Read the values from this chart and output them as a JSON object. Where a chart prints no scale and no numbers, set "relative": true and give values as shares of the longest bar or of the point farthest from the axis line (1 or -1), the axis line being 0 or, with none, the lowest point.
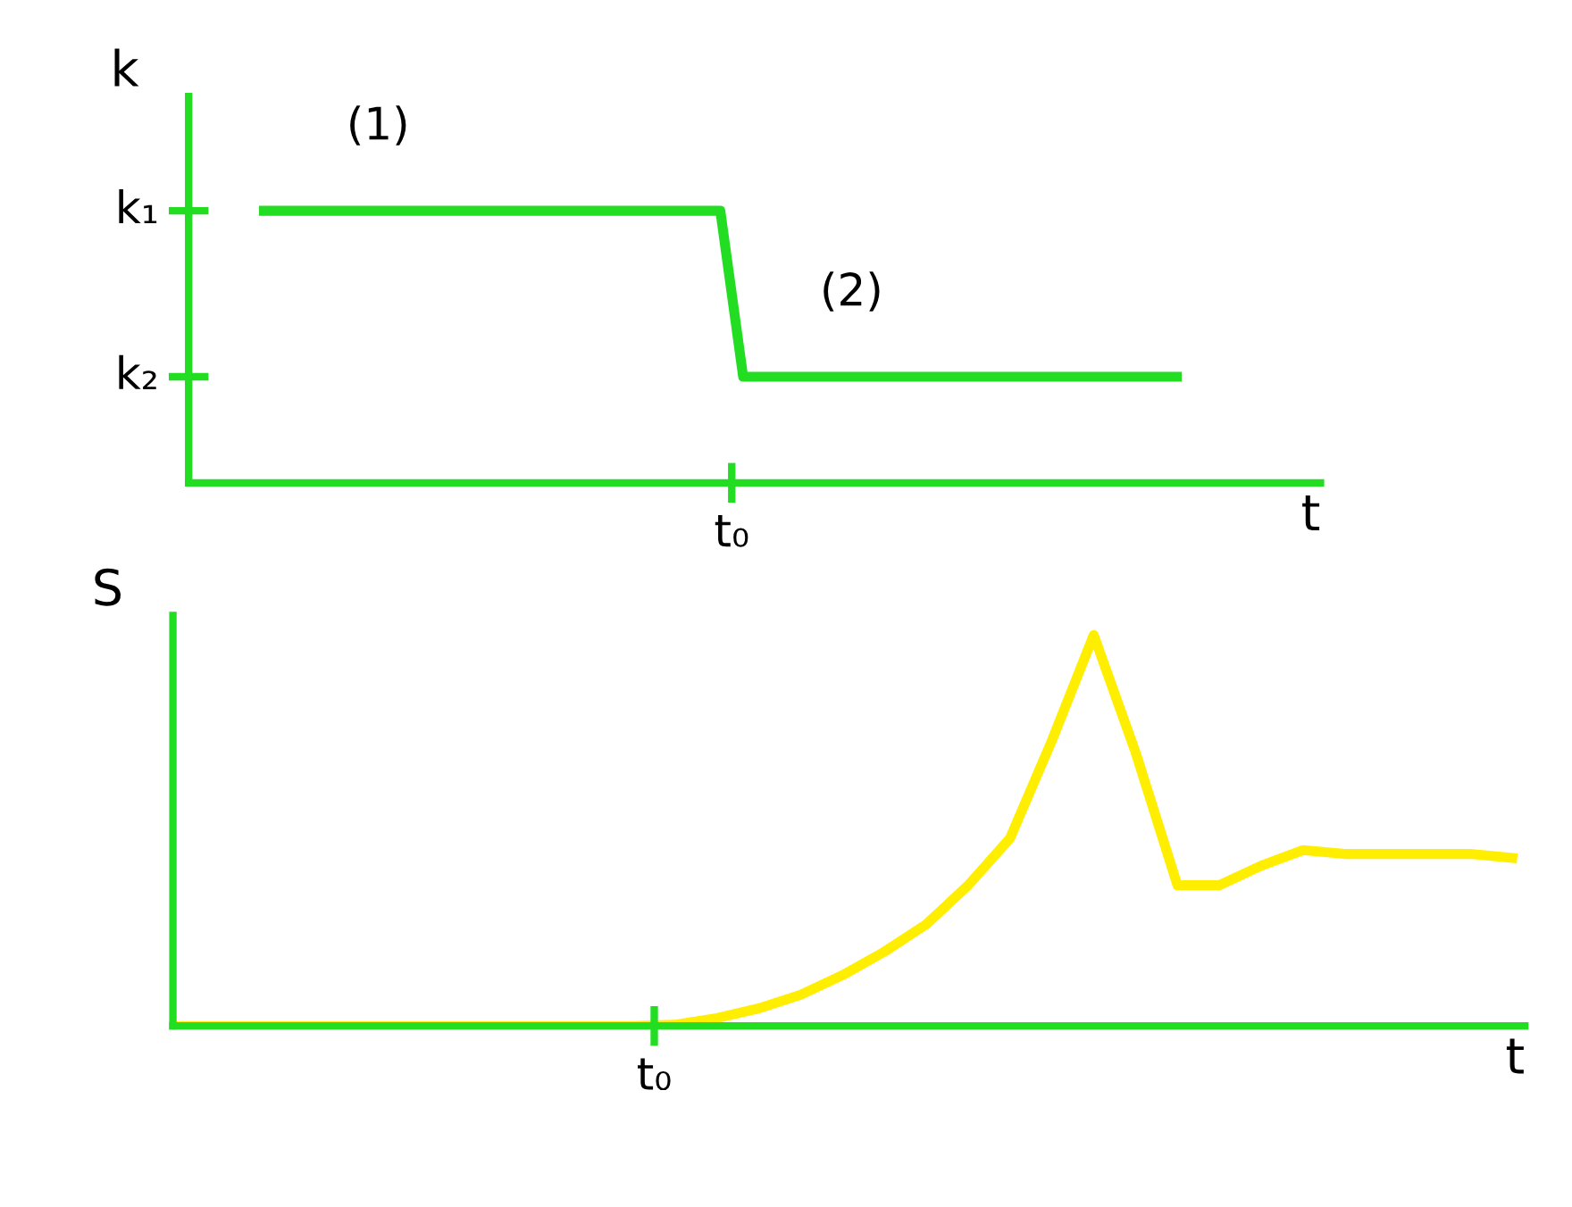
{
  "chart_data": [
    {
      "type": "line",
      "ylabel": "k",
      "xlabel": "t",
      "relative": true,
      "color": "#22dd22",
      "categories": [
        null,
        null,
        null,
        null,
        null,
        null,
        null,
        null,
        null,
        null,
        null,
        null,
        null,
        null,
        null,
        null,
        null,
        null,
        null,
        null,
        null,
        null,
        null,
        null,
        null,
        null,
        null,
        null,
        null,
        null,
        null,
        null,
        null,
        null,
        null,
        null,
        null,
        null,
        null,
        null,
        null
      ],
      "values": [
        1,
        1,
        1,
        1,
        1,
        1,
        1,
        1,
        1,
        1,
        1,
        1,
        1,
        1,
        1,
        1,
        1,
        1,
        1,
        1,
        1,
        0.39,
        0.39,
        0.39,
        0.39,
        0.39,
        0.39,
        0.39,
        0.39,
        0.39,
        0.39,
        0.39,
        0.39,
        0.39,
        0.39,
        0.39,
        0.39,
        0.39,
        0.39,
        0.39,
        0.39
      ],
      "annotations": [
        "t₀",
        "(1)",
        "(2)",
        "k₁",
        "k₂"
      ]
    },
    {
      "type": "line",
      "ylabel": "S",
      "xlabel": "t",
      "relative": true,
      "color": "#ffee00",
      "categories": [
        null,
        null,
        null,
        null,
        null,
        null,
        null,
        null,
        null,
        null,
        null,
        null,
        null,
        null,
        null,
        null,
        null,
        null,
        null,
        null,
        null,
        null,
        null,
        null,
        null,
        null,
        null,
        null,
        null,
        null,
        null,
        null,
        null
      ],
      "values": [
        0,
        0,
        0,
        0,
        0,
        0,
        0,
        0,
        0,
        0,
        0,
        0,
        0.003,
        0.02,
        0.045,
        0.08,
        0.13,
        0.19,
        0.26,
        0.36,
        0.48,
        0.73,
        1,
        0.7,
        0.36,
        0.36,
        0.41,
        0.45,
        0.44,
        0.44,
        0.44,
        0.44,
        0.43
      ],
      "annotations": [
        "t₀"
      ]
    }
  ]
}
